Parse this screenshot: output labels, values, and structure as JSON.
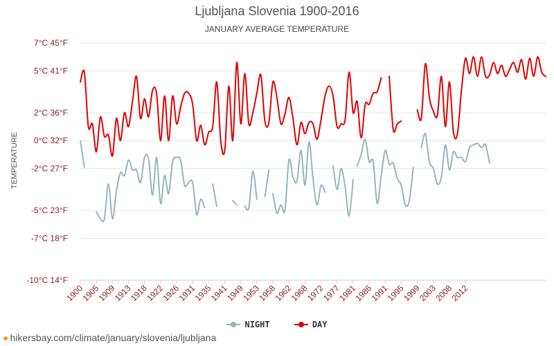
{
  "header": {
    "title": "Ljubljana Slovenia 1900-2016",
    "subtitle": "JANUARY AVERAGE TEMPERATURE"
  },
  "footer": {
    "url": "hikersbay.com/climate/january/slovenia/ljubljana"
  },
  "colors": {
    "day": "#e00000",
    "night": "#96b4be",
    "grid": "#e6e6e6",
    "tick_text": "#8b1a1a"
  },
  "chart_data": {
    "type": "line",
    "title": "Ljubljana Slovenia 1900-2016",
    "subtitle": "JANUARY AVERAGE TEMPERATURE",
    "ylabel": "TEMPERATURE",
    "ylim": [
      -10,
      7
    ],
    "xlim": [
      1900,
      2016
    ],
    "grid": true,
    "legend_position": "bottom",
    "y_ticks": [
      {
        "value": 7,
        "label": "7°C 45°F"
      },
      {
        "value": 5,
        "label": "5°C 41°F"
      },
      {
        "value": 2,
        "label": "2°C 36°F"
      },
      {
        "value": 0,
        "label": "0°C 32°F"
      },
      {
        "value": -2,
        "label": "-2°C 27°F"
      },
      {
        "value": -5,
        "label": "-5°C 23°F"
      },
      {
        "value": -7,
        "label": "-7°C 18°F"
      },
      {
        "value": -10,
        "label": "-10°C 14°F"
      }
    ],
    "x_ticks": [
      {
        "value": 1900,
        "label": "1900"
      },
      {
        "value": 1904,
        "label": "1905"
      },
      {
        "value": 1908,
        "label": "1909"
      },
      {
        "value": 1912,
        "label": "1913"
      },
      {
        "value": 1916,
        "label": "1918"
      },
      {
        "value": 1920,
        "label": "1922"
      },
      {
        "value": 1924,
        "label": "1926"
      },
      {
        "value": 1928,
        "label": "1931"
      },
      {
        "value": 1932,
        "label": "1935"
      },
      {
        "value": 1936,
        "label": "1941"
      },
      {
        "value": 1940,
        "label": "1949"
      },
      {
        "value": 1944,
        "label": "1953"
      },
      {
        "value": 1948,
        "label": "1958"
      },
      {
        "value": 1952,
        "label": "1962"
      },
      {
        "value": 1956,
        "label": "1968"
      },
      {
        "value": 1960,
        "label": "1972"
      },
      {
        "value": 1964,
        "label": "1977"
      },
      {
        "value": 1968,
        "label": "1981"
      },
      {
        "value": 1972,
        "label": "1986"
      },
      {
        "value": 1976,
        "label": "1991"
      },
      {
        "value": 1980,
        "label": "1995"
      },
      {
        "value": 1984,
        "label": "1999"
      },
      {
        "value": 1988,
        "label": "2003"
      },
      {
        "value": 1992,
        "label": "2008"
      },
      {
        "value": 1996,
        "label": "2012"
      }
    ],
    "series": [
      {
        "name": "NIGHT",
        "color": "#96b4be",
        "x": [
          1900,
          1901,
          null,
          1904,
          1905,
          1906,
          1907,
          1908,
          1909,
          1910,
          1911,
          1912,
          1913,
          1914,
          1915,
          1916,
          1917,
          1918,
          1919,
          1920,
          1921,
          1922,
          1923,
          1924,
          1925,
          1926,
          1927,
          1928,
          1929,
          1930,
          1931,
          1932,
          1933,
          1934,
          null,
          1936,
          1937,
          1938,
          1939,
          null,
          1941,
          1942,
          1943,
          1944,
          null,
          1946,
          1947,
          null,
          1948,
          1949,
          1950,
          1951,
          1952,
          1953,
          1954,
          1955,
          1956,
          1957,
          1958,
          1959,
          1960,
          1961,
          1962,
          1963,
          1964,
          1965,
          1966,
          1967,
          1968,
          null,
          1969,
          1970,
          1971,
          1972,
          1973,
          1974,
          1975,
          1976,
          1977,
          1978,
          1979,
          1980,
          1981,
          1982,
          1983,
          null,
          1985,
          1986,
          1987,
          1988,
          1989,
          1990,
          1991,
          1992,
          1993,
          1994,
          1995,
          1996,
          1997,
          1998,
          1999,
          2000,
          2001,
          2002
        ],
        "y": [
          0,
          -1.9,
          null,
          -5.1,
          -5.6,
          -5.6,
          -3.1,
          -5.6,
          -3.6,
          -2.3,
          -2.5,
          -1.4,
          -2.1,
          -2.1,
          -3.0,
          -1.2,
          -1.3,
          -3.9,
          -1.2,
          -4.5,
          -2.5,
          -3.8,
          -1.5,
          -1.2,
          -1.4,
          -3.2,
          -3.0,
          -3.0,
          -5.3,
          -4.2,
          -4.8,
          null,
          -3.1,
          -4.7,
          -1.9,
          -4.9,
          null,
          -4.3,
          -4.6,
          null,
          -4.7,
          -4.8,
          -2.2,
          -4.2,
          -2.9,
          -4.0,
          -2.1,
          -4.5,
          -3.8,
          -5.2,
          -4.6,
          -5.0,
          -1.4,
          -2.6,
          -2.9,
          -0.7,
          -3.2,
          -0.1,
          -2.7,
          -4.6,
          -3.2,
          -3.7,
          null,
          -1.8,
          -3.5,
          -2.0,
          -3.3,
          -5.4,
          -2.8,
          -2.2,
          -1.8,
          -1.0,
          0.1,
          -1.5,
          -1.5,
          -4.5,
          -2.5,
          -0.7,
          -1.7,
          -1.6,
          -2.7,
          -3.2,
          -4.6,
          -4.3,
          -1.9,
          -2.8,
          -0.5,
          0.5,
          -1.5,
          -2.0,
          -3.1,
          -2.6,
          -0.3,
          -2.1,
          -0.8,
          -1.2,
          -1.2,
          -1.5,
          -0.5,
          -0.3,
          -0.2,
          -0.5,
          -0.3,
          -1.6
        ],
        "missing_years": [
          1902,
          1903,
          1935,
          1940,
          1945,
          1948,
          1968,
          1984,
          1996,
          1997
        ]
      },
      {
        "name": "DAY",
        "color": "#e00000",
        "x": [
          1900,
          1901,
          1902,
          1903,
          1904,
          1905,
          1906,
          1907,
          1908,
          1909,
          1910,
          1911,
          1912,
          1913,
          1914,
          1915,
          1916,
          1917,
          1918,
          1919,
          1920,
          1921,
          1922,
          1923,
          1924,
          1925,
          1926,
          1927,
          1928,
          1929,
          1930,
          1931,
          1932,
          1933,
          1934,
          1935,
          1936,
          1937,
          1938,
          1939,
          1940,
          1941,
          1942,
          1943,
          1944,
          1945,
          1946,
          1947,
          1948,
          1949,
          1950,
          1951,
          1952,
          1953,
          1954,
          1955,
          1956,
          1957,
          1958,
          1959,
          1960,
          1961,
          1962,
          1963,
          1964,
          1965,
          1966,
          1967,
          1968,
          1969,
          1970,
          1971,
          1972,
          1973,
          1974,
          1975,
          null,
          1977,
          1978,
          1979,
          1980,
          null,
          1984,
          1985,
          1986,
          1987,
          1988,
          1989,
          1990,
          1991,
          1992,
          1993,
          1994,
          1995,
          1996,
          1997,
          1998,
          1999,
          2000,
          2001,
          2002,
          2003,
          2004,
          2005,
          2006,
          2007,
          2008,
          2009,
          2010,
          2011,
          2012,
          2013,
          2014,
          2015,
          2016
        ],
        "y": [
          4.2,
          4.9,
          1.0,
          1.2,
          -0.8,
          1.7,
          0.3,
          0.4,
          -1.1,
          1.6,
          0.0,
          2.0,
          1.0,
          2.8,
          4.6,
          1.6,
          3.0,
          1.7,
          3.6,
          3.4,
          0.0,
          3.2,
          0.0,
          3.2,
          1.2,
          2.4,
          3.4,
          3.4,
          2.6,
          0.0,
          1.1,
          -0.3,
          0.6,
          1.0,
          4.2,
          0.0,
          -0.7,
          3.9,
          0.0,
          5.6,
          1.2,
          4.8,
          1.2,
          2.0,
          3.4,
          4.7,
          1.4,
          1.3,
          4.2,
          3.1,
          1.2,
          1.9,
          3.1,
          1.6,
          -0.3,
          1.3,
          0.5,
          1.3,
          1.2,
          0.1,
          1.5,
          3.2,
          3.9,
          3.2,
          1.0,
          1.2,
          1.5,
          4.9,
          2.0,
          2.8,
          0.2,
          2.6,
          2.6,
          3.4,
          3.5,
          4.5,
          null,
          4.6,
          0.8,
          1.2,
          1.4,
          null,
          2.2,
          1.6,
          5.5,
          3.1,
          2.1,
          1.8,
          4.6,
          1.0,
          4.2,
          0.6,
          0.5,
          3.6,
          5.9,
          4.8,
          6.0,
          4.6,
          6.0,
          4.6,
          4.7,
          5.6,
          4.8,
          5.4,
          4.6,
          5.1,
          5.6,
          4.9,
          5.8,
          4.4,
          5.9,
          4.6,
          6.0,
          4.9,
          4.6
        ],
        "missing_years": [
          1976,
          1981,
          1982,
          1983
        ]
      }
    ]
  }
}
